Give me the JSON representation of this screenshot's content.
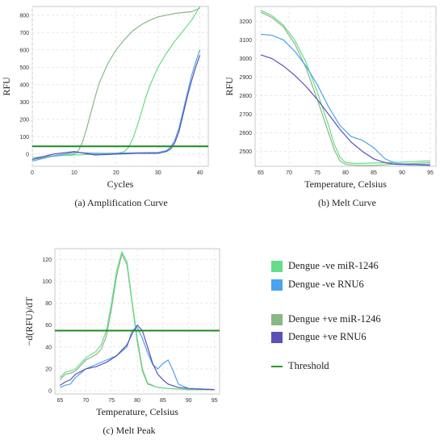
{
  "captions": {
    "a": "(a) Amplification Curve",
    "b": "(b) Melt Curve",
    "c": "(c) Melt Peak"
  },
  "legend": [
    {
      "label": "Dengue -ve miR-1246",
      "color": "#66dd88",
      "kind": "box"
    },
    {
      "label": "Dengue -ve RNU6",
      "color": "#4aa3ee",
      "kind": "box"
    },
    {
      "label": "Dengue +ve miR-1246",
      "color": "#88b888",
      "kind": "box"
    },
    {
      "label": "Dengue +ve RNU6",
      "color": "#5a50b8",
      "kind": "box"
    },
    {
      "label": "Threshold",
      "color": "#2a9a2a",
      "kind": "line"
    }
  ],
  "chart_data": [
    {
      "type": "line",
      "xlabel": "Cycles",
      "ylabel": "RFU",
      "xlim": [
        0,
        42
      ],
      "ylim": [
        -70,
        850
      ],
      "xticks": [
        0,
        10,
        20,
        30,
        40
      ],
      "yticks": [
        0,
        100,
        200,
        300,
        400,
        500,
        600,
        700,
        800
      ],
      "threshold": 45,
      "series": [
        {
          "color": "#88b888",
          "x": [
            0,
            4,
            8,
            10,
            11,
            12,
            13,
            14,
            15,
            16,
            18,
            20,
            22,
            24,
            26,
            28,
            30,
            32,
            34,
            36,
            38,
            40
          ],
          "y": [
            -30,
            -15,
            -5,
            0,
            20,
            70,
            150,
            240,
            330,
            410,
            520,
            600,
            660,
            710,
            745,
            770,
            790,
            800,
            810,
            815,
            820,
            840
          ]
        },
        {
          "color": "#66dd88",
          "x": [
            0,
            5,
            10,
            15,
            20,
            22,
            23,
            24,
            25,
            26,
            27,
            28,
            30,
            32,
            34,
            36,
            38,
            40
          ],
          "y": [
            -20,
            -10,
            -5,
            0,
            5,
            15,
            40,
            90,
            160,
            240,
            320,
            390,
            500,
            580,
            650,
            710,
            770,
            850
          ]
        },
        {
          "color": "#4aa3ee",
          "x": [
            0,
            5,
            10,
            15,
            20,
            25,
            30,
            32,
            33,
            34,
            35,
            36,
            37,
            38,
            39,
            40
          ],
          "y": [
            -40,
            -10,
            10,
            5,
            5,
            8,
            10,
            20,
            40,
            80,
            150,
            250,
            350,
            450,
            530,
            600
          ]
        },
        {
          "color": "#5a50b8",
          "x": [
            0,
            5,
            10,
            15,
            20,
            25,
            30,
            32,
            33,
            34,
            35,
            36,
            37,
            38,
            39,
            40
          ],
          "y": [
            -30,
            0,
            15,
            -5,
            0,
            5,
            5,
            15,
            30,
            65,
            130,
            230,
            330,
            420,
            500,
            570
          ]
        }
      ]
    },
    {
      "type": "line",
      "xlabel": "Temperature, Celsius",
      "ylabel": "RFU",
      "xlim": [
        64,
        96
      ],
      "ylim": [
        2420,
        3280
      ],
      "xticks": [
        65,
        70,
        75,
        80,
        85,
        90,
        95
      ],
      "yticks": [
        2500,
        2600,
        2700,
        2800,
        2900,
        3000,
        3100,
        3200
      ],
      "series": [
        {
          "color": "#88b888",
          "x": [
            65,
            67,
            69,
            71,
            73,
            75,
            77,
            78,
            79,
            80,
            82,
            85,
            88,
            92,
            95
          ],
          "y": [
            3250,
            3220,
            3170,
            3080,
            2950,
            2780,
            2600,
            2510,
            2450,
            2430,
            2425,
            2425,
            2430,
            2435,
            2440
          ]
        },
        {
          "color": "#66dd88",
          "x": [
            65,
            67,
            69,
            71,
            73,
            75,
            77,
            78,
            79,
            80,
            82,
            85,
            88,
            92,
            95
          ],
          "y": [
            3260,
            3230,
            3180,
            3100,
            2980,
            2820,
            2640,
            2540,
            2470,
            2440,
            2435,
            2438,
            2440,
            2445,
            2450
          ]
        },
        {
          "color": "#4aa3ee",
          "x": [
            65,
            67,
            69,
            71,
            73,
            75,
            77,
            79,
            81,
            83,
            85,
            87,
            89,
            92,
            95
          ],
          "y": [
            3130,
            3125,
            3100,
            3040,
            2960,
            2860,
            2740,
            2640,
            2580,
            2560,
            2520,
            2460,
            2435,
            2430,
            2430
          ]
        },
        {
          "color": "#5a50b8",
          "x": [
            65,
            67,
            69,
            71,
            73,
            75,
            77,
            79,
            81,
            83,
            85,
            87,
            89,
            92,
            95
          ],
          "y": [
            3020,
            3000,
            2960,
            2910,
            2850,
            2780,
            2700,
            2620,
            2550,
            2500,
            2460,
            2440,
            2430,
            2428,
            2425
          ]
        }
      ]
    },
    {
      "type": "line",
      "xlabel": "Temperature, Celsius",
      "ylabel": "−d(RFU)/dT",
      "xlim": [
        64,
        96
      ],
      "ylim": [
        -3,
        130
      ],
      "xticks": [
        65,
        70,
        75,
        80,
        85,
        90,
        95
      ],
      "yticks": [
        0,
        20,
        40,
        60,
        80,
        100,
        120
      ],
      "threshold": 55,
      "series": [
        {
          "color": "#88b888",
          "x": [
            65,
            66,
            67,
            68,
            70,
            72,
            73,
            74,
            75,
            76,
            77,
            78,
            79,
            80,
            81,
            82,
            84,
            86,
            90,
            95
          ],
          "y": [
            10,
            15,
            16,
            18,
            28,
            33,
            38,
            50,
            75,
            105,
            125,
            115,
            80,
            45,
            18,
            6,
            3,
            2,
            1,
            1
          ]
        },
        {
          "color": "#66dd88",
          "x": [
            65,
            66,
            67,
            68,
            70,
            72,
            73,
            74,
            75,
            76,
            77,
            78,
            79,
            80,
            81,
            82,
            84,
            86,
            90,
            95
          ],
          "y": [
            12,
            17,
            18,
            20,
            30,
            36,
            42,
            55,
            80,
            110,
            127,
            118,
            82,
            48,
            20,
            7,
            3,
            2,
            1,
            1
          ]
        },
        {
          "color": "#4aa3ee",
          "x": [
            65,
            66,
            67,
            68,
            70,
            72,
            74,
            76,
            78,
            79,
            80,
            81,
            82,
            83,
            84,
            85,
            86,
            87,
            88,
            90,
            95
          ],
          "y": [
            3,
            5,
            6,
            12,
            20,
            24,
            28,
            32,
            40,
            55,
            58,
            48,
            35,
            24,
            20,
            25,
            28,
            18,
            6,
            2,
            1
          ]
        },
        {
          "color": "#5a50b8",
          "x": [
            65,
            66,
            67,
            68,
            70,
            72,
            74,
            76,
            78,
            79,
            80,
            81,
            82,
            83,
            84,
            85,
            86,
            88,
            90,
            95
          ],
          "y": [
            5,
            8,
            10,
            15,
            20,
            22,
            26,
            32,
            42,
            52,
            60,
            55,
            40,
            25,
            15,
            10,
            6,
            3,
            2,
            1
          ]
        }
      ]
    }
  ]
}
